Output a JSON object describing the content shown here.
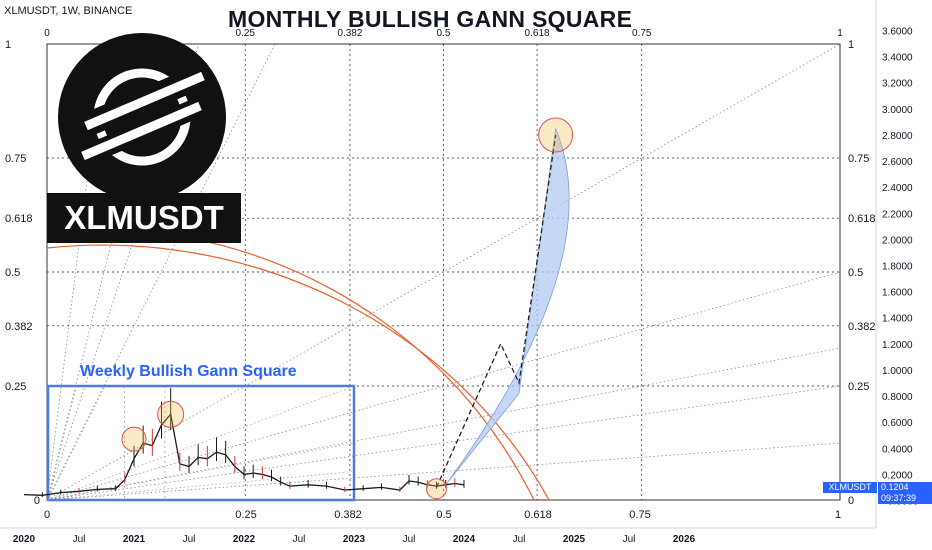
{
  "symbol_header": "XLMUSDT, 1W, BINANCE",
  "title": "MONTHLY BULLISH GANN SQUARE",
  "ticker_badge": "XLMUSDT",
  "weekly_title": "Weekly Bullish Gann Square",
  "price_badge_label": "XLMUSDT",
  "last_price": "0.1204",
  "countdown": "09:37:39",
  "colors": {
    "grid_dashed": "#222222",
    "gann_fan": "#8a8a8a",
    "gann_arc": "#e8602c",
    "projection_fill": "#b3c9f2",
    "weekly_box": "#4a7de8",
    "highlight_circle": "#f5b942",
    "accent_blue": "#2962ff"
  },
  "icons": [
    "stellar-logo-icon"
  ],
  "chart_data": {
    "type": "line",
    "x_axis_labels": [
      "2020",
      "Jul",
      "2021",
      "Jul",
      "2022",
      "Jul",
      "2023",
      "Jul",
      "2024",
      "Jul",
      "2025",
      "Jul",
      "2026"
    ],
    "price_axis_ticks": [
      "3.6000",
      "3.4000",
      "3.2000",
      "3.0000",
      "2.8000",
      "2.6000",
      "2.4000",
      "2.2000",
      "2.0000",
      "1.8000",
      "1.6000",
      "1.4000",
      "1.2000",
      "1.0000",
      "0.8000",
      "0.6000",
      "0.4000",
      "0.2000",
      "−0.0000"
    ],
    "ylim": [
      -0.05,
      3.65
    ],
    "gann_levels": [
      "0",
      "0.25",
      "0.382",
      "0.5",
      "0.618",
      "0.75",
      "1"
    ],
    "gann_square": {
      "x_start": "2020-02",
      "x_end": "2025-12",
      "price_low": 0.0,
      "price_high": 3.65
    },
    "weekly_gann_square": {
      "x_start": "2020-02",
      "x_end": "2022-06",
      "price_low": 0.0,
      "price_high": 0.85,
      "bottom_labels": [
        "0",
        "0.25",
        "0.382"
      ]
    },
    "price_series": [
      {
        "x": "2020-01",
        "y": 0.045
      },
      {
        "x": "2020-03",
        "y": 0.04
      },
      {
        "x": "2020-05",
        "y": 0.06
      },
      {
        "x": "2020-07",
        "y": 0.07
      },
      {
        "x": "2020-09",
        "y": 0.085
      },
      {
        "x": "2020-11",
        "y": 0.09
      },
      {
        "x": "2020-12",
        "y": 0.16
      },
      {
        "x": "2021-01",
        "y": 0.32
      },
      {
        "x": "2021-02",
        "y": 0.44
      },
      {
        "x": "2021-03",
        "y": 0.42
      },
      {
        "x": "2021-04",
        "y": 0.58
      },
      {
        "x": "2021-05",
        "y": 0.66
      },
      {
        "x": "2021-06",
        "y": 0.28
      },
      {
        "x": "2021-07",
        "y": 0.26
      },
      {
        "x": "2021-08",
        "y": 0.33
      },
      {
        "x": "2021-09",
        "y": 0.32
      },
      {
        "x": "2021-10",
        "y": 0.37
      },
      {
        "x": "2021-11",
        "y": 0.35
      },
      {
        "x": "2021-12",
        "y": 0.26
      },
      {
        "x": "2022-01",
        "y": 0.2
      },
      {
        "x": "2022-02",
        "y": 0.21
      },
      {
        "x": "2022-03",
        "y": 0.2
      },
      {
        "x": "2022-04",
        "y": 0.18
      },
      {
        "x": "2022-05",
        "y": 0.14
      },
      {
        "x": "2022-06",
        "y": 0.11
      },
      {
        "x": "2022-08",
        "y": 0.12
      },
      {
        "x": "2022-10",
        "y": 0.11
      },
      {
        "x": "2022-12",
        "y": 0.08
      },
      {
        "x": "2023-02",
        "y": 0.09
      },
      {
        "x": "2023-04",
        "y": 0.1
      },
      {
        "x": "2023-06",
        "y": 0.08
      },
      {
        "x": "2023-07",
        "y": 0.15
      },
      {
        "x": "2023-08",
        "y": 0.14
      },
      {
        "x": "2023-09",
        "y": 0.12
      },
      {
        "x": "2023-10",
        "y": 0.11
      },
      {
        "x": "2023-11",
        "y": 0.12
      },
      {
        "x": "2023-12",
        "y": 0.13
      },
      {
        "x": "2024-01",
        "y": 0.12
      },
      {
        "x": "2024-01",
        "y": 0.1204
      }
    ],
    "highlight_points": [
      {
        "x": "2021-01",
        "y": 0.47
      },
      {
        "x": "2021-05",
        "y": 0.66
      },
      {
        "x": "2023-10",
        "y": 0.09
      },
      {
        "x": "2024-11",
        "y": 2.8
      }
    ],
    "projection_path": [
      {
        "x": "2023-10",
        "y": 0.1
      },
      {
        "x": "2024-05",
        "y": 1.2
      },
      {
        "x": "2024-07",
        "y": 0.9
      },
      {
        "x": "2024-11",
        "y": 2.8
      }
    ],
    "projection_band": [
      {
        "x": "2023-11",
        "y": 0.12
      },
      {
        "x": "2024-07",
        "y": 0.82
      },
      {
        "x": "2024-11",
        "y": 2.85
      }
    ]
  }
}
